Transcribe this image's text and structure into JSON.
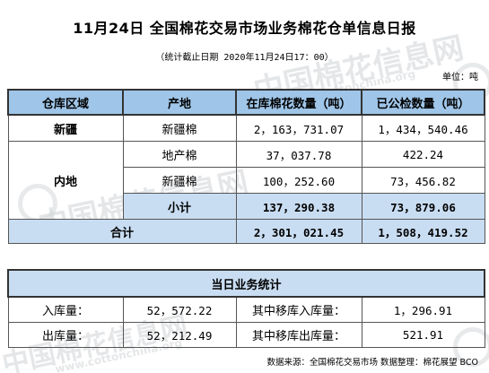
{
  "watermark": {
    "main": "中国棉花信息网",
    "sub": "www.cottonchina.org"
  },
  "title": "11月24日 全国棉花交易市场业务棉花仓单信息日报",
  "subtitle": "（统计截止日期 2020年11月24日17：00）",
  "unit": "单位：吨",
  "table": {
    "headers": [
      "仓库区域",
      "产地",
      "在库棉花数量（吨）",
      "已公检数量（吨）"
    ],
    "xinjiang": {
      "region": "新疆",
      "origin": "新疆棉",
      "in_stock": "2，163，731.07",
      "inspected": "1，434，540.46"
    },
    "inland": {
      "region": "内地",
      "rows": [
        {
          "origin": "地产棉",
          "in_stock": "37，037.78",
          "inspected": "422.24"
        },
        {
          "origin": "新疆棉",
          "in_stock": "100，252.60",
          "inspected": "73，456.82"
        }
      ],
      "subtotal": {
        "label": "小计",
        "in_stock": "137，290.38",
        "inspected": "73，879.06"
      }
    },
    "total": {
      "label": "合计",
      "in_stock": "2，301，021.45",
      "inspected": "1，508，419.52"
    }
  },
  "daily": {
    "header": "当日业务统计",
    "rows": [
      {
        "label1": "入库量：",
        "value1": "52，572.22",
        "label2": "其中移库入库量：",
        "value2": "1，296.91"
      },
      {
        "label1": "出库量：",
        "value1": "52，212.49",
        "label2": "其中移库出库量：",
        "value2": "521.91"
      }
    ]
  },
  "footer": "数据来源：全国棉花交易市场   数据整理：棉花展望 BCO",
  "colors": {
    "header_blue": "#9fc5e8",
    "light_blue": "#c9ddf2"
  }
}
